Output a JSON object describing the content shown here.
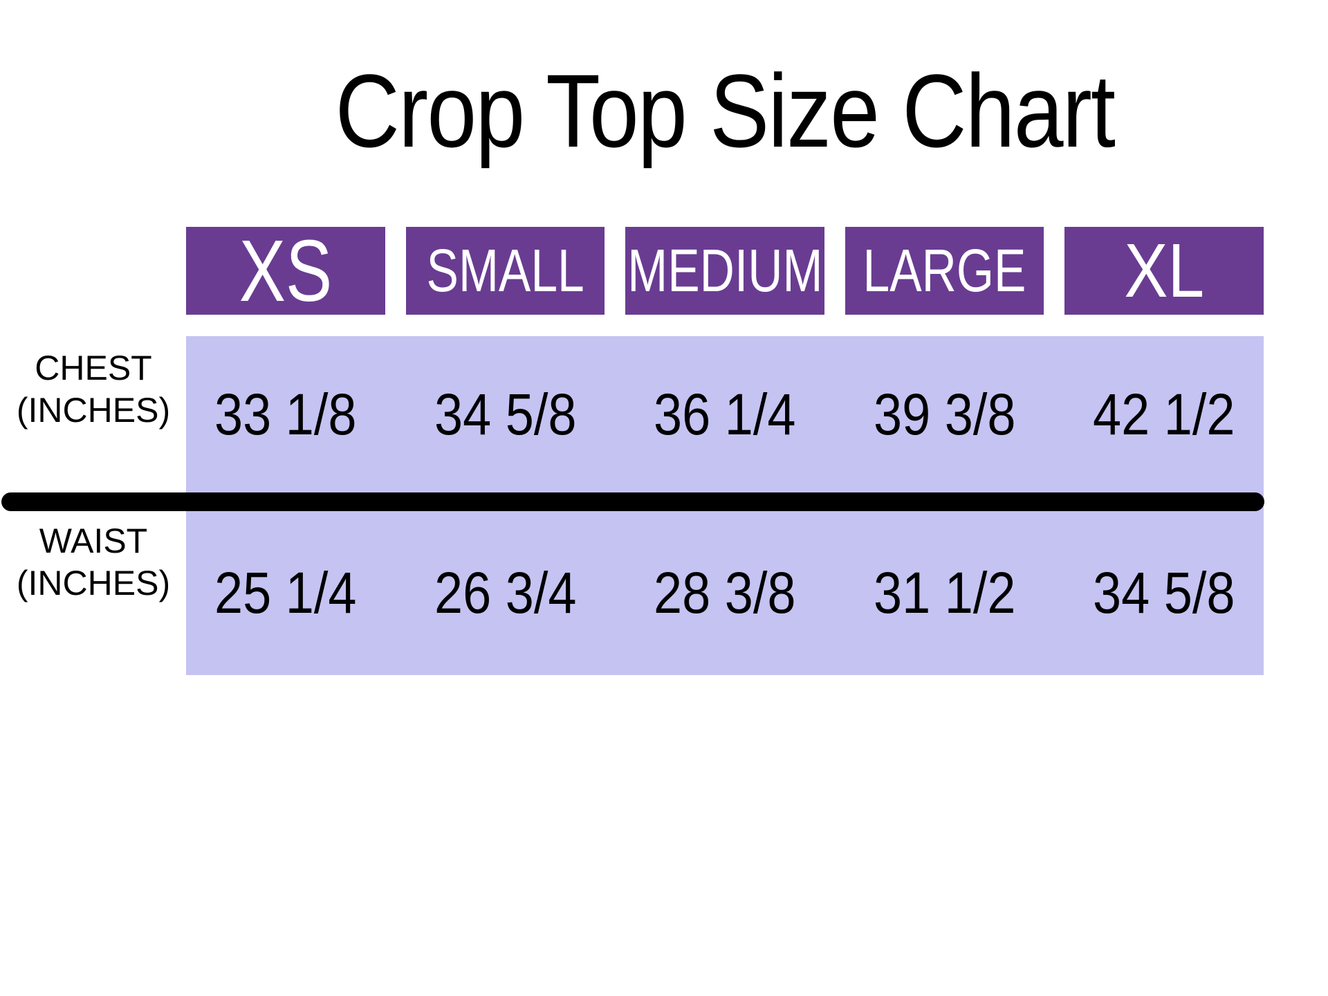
{
  "title": "Crop Top Size Chart",
  "colors": {
    "page_bg": "#FFFFFF",
    "header_bg": "#693C92",
    "header_text": "#FFFFFF",
    "band_bg": "#C5C3F2",
    "divider": "#000000",
    "text": "#000000"
  },
  "chart_data": {
    "type": "table",
    "title": "Crop Top Size Chart",
    "columns": [
      "XS",
      "SMALL",
      "MEDIUM",
      "LARGE",
      "XL"
    ],
    "rows": [
      {
        "label": "CHEST",
        "unit": "(INCHES)",
        "values": [
          "33 1/8",
          "34 5/8",
          "36 1/4",
          "39 3/8",
          "42 1/2"
        ]
      },
      {
        "label": "WAIST",
        "unit": "(INCHES)",
        "values": [
          "25 1/4",
          "26 3/4",
          "28 3/8",
          "31 1/2",
          "34 5/8"
        ]
      }
    ],
    "layout": {
      "header_position": "top",
      "row_labels_position": "left",
      "grid": "off",
      "divider_between_rows": true
    }
  }
}
